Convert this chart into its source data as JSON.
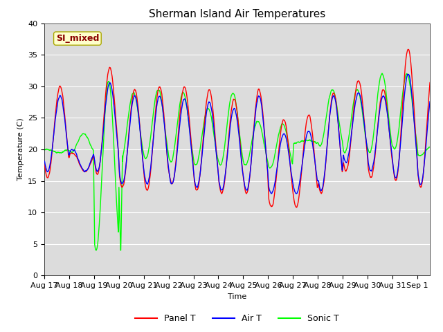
{
  "title": "Sherman Island Air Temperatures",
  "xlabel": "Time",
  "ylabel": "Temperature (C)",
  "ylim": [
    0,
    40
  ],
  "ytick_values": [
    0,
    5,
    10,
    15,
    20,
    25,
    30,
    35,
    40
  ],
  "xtick_labels": [
    "Aug 17",
    "Aug 18",
    "Aug 19",
    "Aug 20",
    "Aug 21",
    "Aug 22",
    "Aug 23",
    "Aug 24",
    "Aug 25",
    "Aug 26",
    "Aug 27",
    "Aug 28",
    "Aug 29",
    "Aug 30",
    "Aug 31",
    "Sep 1"
  ],
  "legend_labels": [
    "Panel T",
    "Air T",
    "Sonic T"
  ],
  "line_colors": [
    "red",
    "blue",
    "lime"
  ],
  "annotation_text": "SI_mixed",
  "annotation_color": "#8b0000",
  "annotation_bg": "#ffffcc",
  "bg_color": "#dcdcdc",
  "title_fontsize": 11,
  "axis_fontsize": 8,
  "legend_fontsize": 9,
  "panel_daily_peaks": [
    30.0,
    16.5,
    33.0,
    29.5,
    30.0,
    30.0,
    29.5,
    28.0,
    29.5,
    24.8,
    25.5,
    29.0,
    31.0,
    29.5,
    36.0,
    33.5
  ],
  "panel_daily_troughs": [
    15.5,
    19.5,
    16.0,
    14.0,
    13.5,
    14.5,
    13.5,
    13.0,
    13.0,
    10.8,
    10.8,
    13.0,
    16.5,
    15.5,
    15.0,
    14.0
  ],
  "air_daily_peaks": [
    28.5,
    16.5,
    30.5,
    28.5,
    28.5,
    28.0,
    27.5,
    26.5,
    28.5,
    22.5,
    23.0,
    28.5,
    29.0,
    28.5,
    32.0,
    30.0
  ],
  "air_daily_troughs": [
    16.5,
    20.0,
    16.5,
    14.5,
    14.5,
    14.5,
    14.0,
    13.5,
    13.5,
    13.0,
    13.0,
    13.5,
    18.0,
    16.5,
    15.5,
    14.5
  ],
  "sonic_daily_peaks": [
    19.5,
    22.5,
    31.0,
    29.0,
    29.5,
    29.0,
    26.5,
    29.0,
    24.5,
    24.0,
    21.5,
    29.5,
    29.5,
    32.0,
    32.0,
    20.5
  ],
  "sonic_daily_troughs": [
    20.0,
    19.5,
    4.0,
    18.5,
    18.5,
    18.0,
    17.5,
    17.5,
    17.5,
    17.0,
    21.0,
    20.5,
    19.5,
    19.5,
    20.0,
    19.0
  ]
}
